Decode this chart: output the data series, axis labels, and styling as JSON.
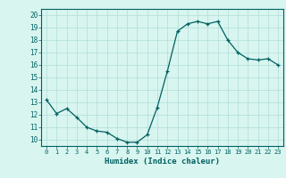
{
  "x": [
    0,
    1,
    2,
    3,
    4,
    5,
    6,
    7,
    8,
    9,
    10,
    11,
    12,
    13,
    14,
    15,
    16,
    17,
    18,
    19,
    20,
    21,
    22,
    23
  ],
  "y": [
    13.2,
    12.1,
    12.5,
    11.8,
    11.0,
    10.7,
    10.6,
    10.1,
    9.8,
    9.8,
    10.4,
    12.6,
    15.5,
    18.7,
    19.3,
    19.5,
    19.3,
    19.5,
    18.0,
    17.0,
    16.5,
    16.4,
    16.5,
    16.0
  ],
  "xlim": [
    -0.5,
    23.5
  ],
  "ylim": [
    9.5,
    20.5
  ],
  "yticks": [
    10,
    11,
    12,
    13,
    14,
    15,
    16,
    17,
    18,
    19,
    20
  ],
  "xticks": [
    0,
    1,
    2,
    3,
    4,
    5,
    6,
    7,
    8,
    9,
    10,
    11,
    12,
    13,
    14,
    15,
    16,
    17,
    18,
    19,
    20,
    21,
    22,
    23
  ],
  "xlabel": "Humidex (Indice chaleur)",
  "line_color": "#006060",
  "marker_color": "#006060",
  "bg_color": "#d8f5f0",
  "grid_color": "#b0ddd8"
}
